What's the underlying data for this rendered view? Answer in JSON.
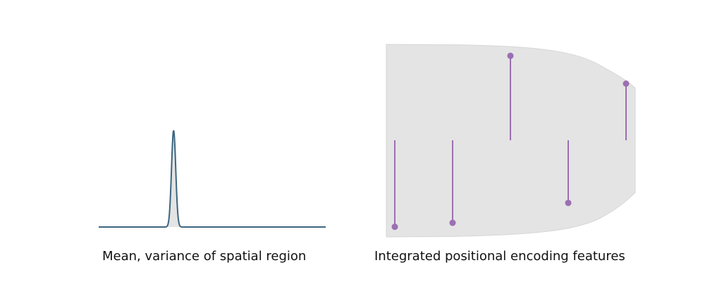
{
  "left_panel": {
    "caption": "Mean, variance of spatial region",
    "curve": {
      "type": "gaussian",
      "mean_fraction": 0.33,
      "std_fraction": 0.0093,
      "color": "#3d6680"
    }
  },
  "right_panel": {
    "caption": "Integrated positional encoding features",
    "envelope": {
      "color": "#e4e4e4",
      "edge_color": "#d6d6d6"
    },
    "stem_color": "#9b6fb1",
    "features": [
      {
        "value": -0.87
      },
      {
        "value": -0.83
      },
      {
        "value": 0.85
      },
      {
        "value": -0.63
      },
      {
        "value": 0.57
      }
    ]
  },
  "colors": {
    "background": "#ffffff"
  }
}
